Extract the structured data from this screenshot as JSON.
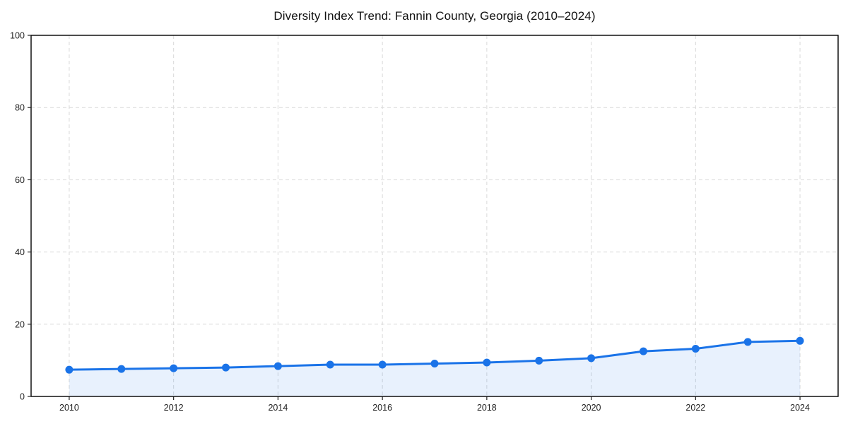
{
  "title": "Diversity Index Trend: Fannin County, Georgia (2010–2024)",
  "colors": {
    "line": "#1a73e8",
    "marker": "#1a73e8",
    "area_fill": "rgba(26,115,232,0.10)",
    "grid": "#d9d9d9",
    "spine": "#000000",
    "tick_mark": "#222222",
    "tick_label": "#222222",
    "title_text": "#111111",
    "background": "#ffffff"
  },
  "chart_data": {
    "type": "line",
    "title": "Diversity Index Trend: Fannin County, Georgia (2010–2024)",
    "xlabel": "",
    "ylabel": "",
    "x": [
      2010,
      2011,
      2012,
      2013,
      2014,
      2015,
      2016,
      2017,
      2018,
      2019,
      2020,
      2021,
      2022,
      2023,
      2024
    ],
    "series": [
      {
        "name": "Diversity Index",
        "values": [
          7.4,
          7.6,
          7.8,
          8.0,
          8.4,
          8.8,
          8.8,
          9.1,
          9.4,
          9.9,
          10.6,
          12.5,
          13.2,
          15.1,
          15.4
        ]
      }
    ],
    "xticks": [
      2010,
      2012,
      2014,
      2016,
      2018,
      2020,
      2022,
      2024
    ],
    "yticks": [
      0,
      20,
      40,
      60,
      80,
      100
    ],
    "ylim": [
      0,
      100
    ],
    "grid": true,
    "grid_style": "dashed",
    "legend": "none",
    "marker": "circle",
    "area_fill": true
  }
}
